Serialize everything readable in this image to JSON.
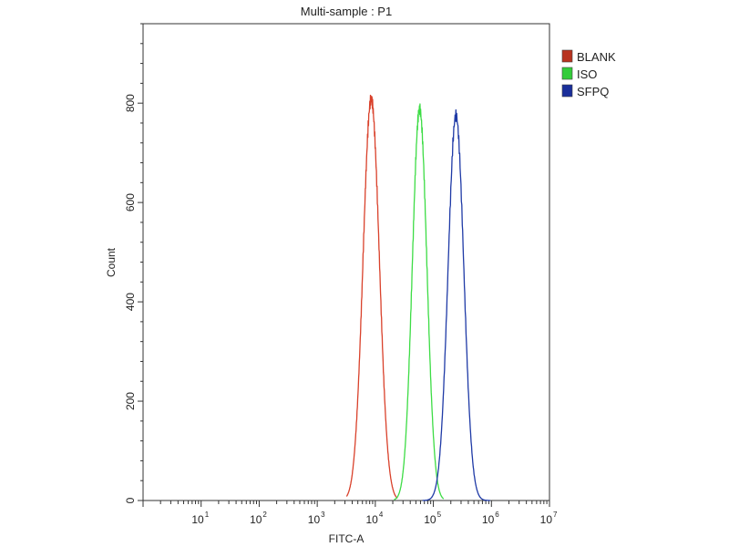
{
  "chart_data": {
    "type": "line",
    "title": "Multi-sample : P1",
    "xlabel": "FITC-A",
    "ylabel": "Count",
    "x_scale": "log10",
    "xlim": [
      1,
      10000000
    ],
    "ylim": [
      0,
      960
    ],
    "y_ticks": [
      0,
      200,
      400,
      600,
      800
    ],
    "x_major_ticks": [
      {
        "value": 10,
        "base": "10",
        "exp": "1"
      },
      {
        "value": 100,
        "base": "10",
        "exp": "2"
      },
      {
        "value": 1000,
        "base": "10",
        "exp": "3"
      },
      {
        "value": 10000,
        "base": "10",
        "exp": "4"
      },
      {
        "value": 100000,
        "base": "10",
        "exp": "5"
      },
      {
        "value": 1000000,
        "base": "10",
        "exp": "6"
      },
      {
        "value": 10000000,
        "base": "10",
        "exp": "7"
      }
    ],
    "grid": false,
    "legend_position": "top-right",
    "series": [
      {
        "name": "BLANK",
        "color": "#d9412b",
        "swatch": "#b8321f",
        "peak_x": 8500,
        "peak_y": 808,
        "log_sigma": 0.14,
        "min_x": 3200,
        "max_x": 24000
      },
      {
        "name": "ISO",
        "color": "#3ddc45",
        "swatch": "#33cc3a",
        "peak_x": 58000,
        "peak_y": 788,
        "log_sigma": 0.125,
        "min_x": 21000,
        "max_x": 150000
      },
      {
        "name": "SFPQ",
        "color": "#1f3aa6",
        "swatch": "#1a2e9a",
        "peak_x": 245000,
        "peak_y": 775,
        "log_sigma": 0.135,
        "min_x": 65000,
        "max_x": 950000
      }
    ]
  }
}
